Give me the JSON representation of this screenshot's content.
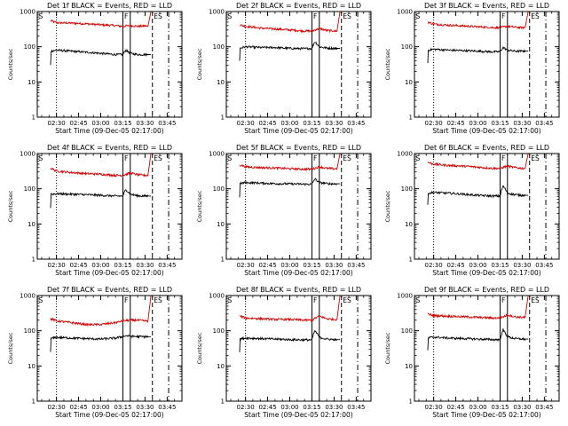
{
  "chart_data": {
    "type": "line",
    "grid": false,
    "legend": "none",
    "y_scale": "log",
    "ylim": [
      1,
      1000
    ],
    "y_ticks": [
      1,
      10,
      100,
      1000
    ],
    "y_tick_labels": [
      "1",
      "10",
      "100",
      "1000"
    ],
    "x_tick_labels": [
      "02:30",
      "02:45",
      "03:00",
      "03:15",
      "03:30",
      "03:45"
    ],
    "x_ticks_min": [
      0,
      15,
      30,
      45,
      60,
      75
    ],
    "x_start": "02:17:00",
    "xlim_min_from_0230": [
      -13,
      85
    ],
    "colors": {
      "events": "#000000",
      "lld": "#d40000"
    },
    "panels": [
      {
        "title": "Det 1f BLACK = Events, RED = LLD",
        "xlabel": "Start Time (09-Dec-05 02:17:00)",
        "ylabel": "Counts/sec",
        "lld_series": {
          "x": [
            -4,
            0,
            10,
            20,
            30,
            40,
            45,
            50,
            55,
            60,
            62,
            64
          ],
          "values": [
            550,
            480,
            470,
            450,
            420,
            400,
            380,
            400,
            380,
            390,
            380,
            1000
          ]
        },
        "events_series": {
          "x": [
            -4,
            -4,
            0,
            10,
            20,
            30,
            40,
            45,
            47,
            50,
            55,
            60,
            64
          ],
          "values": [
            30,
            75,
            80,
            75,
            70,
            65,
            60,
            60,
            80,
            65,
            60,
            60,
            60
          ]
        },
        "markers": [
          {
            "label": "S",
            "x": -13,
            "style": "solid"
          },
          {
            "label": "",
            "x": 0,
            "style": "dotted"
          },
          {
            "label": "F",
            "x": 45,
            "style": "solid"
          },
          {
            "label": "",
            "x": 50,
            "style": "solid"
          },
          {
            "label": "ES",
            "x": 65,
            "style": "dashed"
          },
          {
            "label": "",
            "x": 76,
            "style": "dashdot"
          }
        ]
      },
      {
        "title": "Det 2f BLACK = Events, RED = LLD",
        "xlabel": "Start Time (09-Dec-05 02:17:00)",
        "ylabel": "Counts/sec",
        "lld_series": {
          "x": [
            -4,
            0,
            10,
            20,
            30,
            40,
            45,
            50,
            55,
            60,
            62,
            64
          ],
          "values": [
            420,
            380,
            340,
            320,
            300,
            280,
            280,
            330,
            290,
            280,
            280,
            1000
          ]
        },
        "events_series": {
          "x": [
            -4,
            -4,
            0,
            10,
            20,
            30,
            40,
            45,
            47,
            50,
            55,
            60,
            64
          ],
          "values": [
            40,
            90,
            100,
            95,
            95,
            90,
            88,
            90,
            140,
            100,
            92,
            90,
            90
          ]
        },
        "markers": [
          {
            "label": "S",
            "x": -13,
            "style": "solid"
          },
          {
            "label": "",
            "x": 0,
            "style": "dotted"
          },
          {
            "label": "F",
            "x": 45,
            "style": "solid"
          },
          {
            "label": "",
            "x": 50,
            "style": "solid"
          },
          {
            "label": "ES",
            "x": 65,
            "style": "dashed"
          },
          {
            "label": "",
            "x": 76,
            "style": "dashdot"
          }
        ]
      },
      {
        "title": "Det 3f BLACK = Events, RED = LLD",
        "xlabel": "Start Time (09-Dec-05 02:17:00)",
        "ylabel": "Counts/sec",
        "lld_series": {
          "x": [
            -4,
            0,
            10,
            20,
            30,
            40,
            45,
            50,
            55,
            60,
            62,
            64
          ],
          "values": [
            500,
            440,
            410,
            390,
            370,
            350,
            350,
            380,
            360,
            350,
            350,
            1000
          ]
        },
        "events_series": {
          "x": [
            -4,
            -4,
            0,
            10,
            20,
            30,
            40,
            45,
            47,
            50,
            55,
            60,
            64
          ],
          "values": [
            35,
            80,
            85,
            80,
            78,
            75,
            72,
            72,
            95,
            80,
            75,
            75,
            75
          ]
        },
        "markers": [
          {
            "label": "S",
            "x": -13,
            "style": "solid"
          },
          {
            "label": "",
            "x": 0,
            "style": "dotted"
          },
          {
            "label": "F",
            "x": 45,
            "style": "solid"
          },
          {
            "label": "",
            "x": 50,
            "style": "solid"
          },
          {
            "label": "ES",
            "x": 65,
            "style": "dashed"
          },
          {
            "label": "",
            "x": 76,
            "style": "dashdot"
          }
        ]
      },
      {
        "title": "Det 4f BLACK = Events, RED = LLD",
        "xlabel": "Start Time (09-Dec-05 02:17:00)",
        "ylabel": "Counts/sec",
        "lld_series": {
          "x": [
            -4,
            0,
            10,
            20,
            30,
            40,
            45,
            50,
            55,
            60,
            62,
            64
          ],
          "values": [
            380,
            320,
            290,
            270,
            260,
            240,
            240,
            280,
            250,
            240,
            240,
            1000
          ]
        },
        "events_series": {
          "x": [
            -4,
            -4,
            0,
            10,
            20,
            30,
            40,
            45,
            47,
            50,
            55,
            60,
            64
          ],
          "values": [
            30,
            70,
            72,
            70,
            68,
            65,
            62,
            62,
            95,
            70,
            63,
            62,
            62
          ]
        },
        "markers": [
          {
            "label": "S",
            "x": -13,
            "style": "solid"
          },
          {
            "label": "",
            "x": 0,
            "style": "dotted"
          },
          {
            "label": "F",
            "x": 45,
            "style": "solid"
          },
          {
            "label": "",
            "x": 50,
            "style": "solid"
          },
          {
            "label": "ES",
            "x": 65,
            "style": "dashed"
          },
          {
            "label": "",
            "x": 76,
            "style": "dashdot"
          }
        ]
      },
      {
        "title": "Det 5f BLACK = Events, RED = LLD",
        "xlabel": "Start Time (09-Dec-05 02:17:00)",
        "ylabel": "Counts/sec",
        "lld_series": {
          "x": [
            -4,
            0,
            10,
            20,
            30,
            40,
            45,
            50,
            55,
            60,
            62,
            64
          ],
          "values": [
            480,
            420,
            400,
            390,
            370,
            360,
            360,
            420,
            380,
            370,
            370,
            1000
          ]
        },
        "events_series": {
          "x": [
            -4,
            -4,
            0,
            10,
            20,
            30,
            40,
            45,
            47,
            50,
            55,
            60,
            64
          ],
          "values": [
            60,
            140,
            150,
            145,
            140,
            138,
            135,
            135,
            190,
            150,
            140,
            138,
            138
          ]
        },
        "markers": [
          {
            "label": "S",
            "x": -13,
            "style": "solid"
          },
          {
            "label": "",
            "x": 0,
            "style": "dotted"
          },
          {
            "label": "F",
            "x": 45,
            "style": "solid"
          },
          {
            "label": "",
            "x": 50,
            "style": "solid"
          },
          {
            "label": "ES",
            "x": 65,
            "style": "dashed"
          },
          {
            "label": "",
            "x": 76,
            "style": "dashdot"
          }
        ]
      },
      {
        "title": "Det 6f BLACK = Events, RED = LLD",
        "xlabel": "Start Time (09-Dec-05 02:17:00)",
        "ylabel": "Counts/sec",
        "lld_series": {
          "x": [
            -4,
            0,
            10,
            20,
            30,
            40,
            45,
            50,
            55,
            60,
            62,
            64
          ],
          "values": [
            560,
            500,
            460,
            440,
            410,
            380,
            380,
            440,
            400,
            380,
            380,
            1000
          ]
        },
        "events_series": {
          "x": [
            -4,
            -4,
            0,
            10,
            20,
            30,
            40,
            45,
            47,
            50,
            55,
            60,
            64
          ],
          "values": [
            35,
            75,
            78,
            75,
            70,
            65,
            62,
            62,
            120,
            75,
            68,
            65,
            65
          ]
        },
        "markers": [
          {
            "label": "S",
            "x": -13,
            "style": "solid"
          },
          {
            "label": "",
            "x": 0,
            "style": "dotted"
          },
          {
            "label": "F",
            "x": 45,
            "style": "solid"
          },
          {
            "label": "",
            "x": 50,
            "style": "solid"
          },
          {
            "label": "ES",
            "x": 65,
            "style": "dashed"
          },
          {
            "label": "",
            "x": 76,
            "style": "dashdot"
          }
        ]
      },
      {
        "title": "Det 7f BLACK = Events, RED = LLD",
        "xlabel": "Start Time (09-Dec-05 02:17:00)",
        "ylabel": "Counts/sec",
        "lld_series": {
          "x": [
            -4,
            0,
            10,
            20,
            30,
            40,
            45,
            50,
            55,
            60,
            62,
            64
          ],
          "values": [
            220,
            190,
            170,
            150,
            150,
            170,
            190,
            200,
            200,
            190,
            190,
            1000
          ]
        },
        "events_series": {
          "x": [
            -4,
            -4,
            0,
            10,
            20,
            30,
            40,
            45,
            47,
            50,
            55,
            60,
            64
          ],
          "values": [
            25,
            60,
            65,
            62,
            60,
            58,
            62,
            68,
            72,
            70,
            68,
            68,
            68
          ]
        },
        "markers": [
          {
            "label": "S",
            "x": -13,
            "style": "solid"
          },
          {
            "label": "",
            "x": 0,
            "style": "dotted"
          },
          {
            "label": "F",
            "x": 45,
            "style": "solid"
          },
          {
            "label": "",
            "x": 50,
            "style": "solid"
          },
          {
            "label": "ES",
            "x": 65,
            "style": "dashed"
          },
          {
            "label": "",
            "x": 76,
            "style": "dashdot"
          }
        ]
      },
      {
        "title": "Det 8f BLACK = Events, RED = LLD",
        "xlabel": "Start Time (09-Dec-05 02:17:00)",
        "ylabel": "Counts/sec",
        "lld_series": {
          "x": [
            -4,
            0,
            10,
            20,
            30,
            40,
            45,
            50,
            55,
            60,
            62,
            64
          ],
          "values": [
            260,
            230,
            220,
            210,
            210,
            200,
            200,
            260,
            220,
            210,
            210,
            1000
          ]
        },
        "events_series": {
          "x": [
            -4,
            -4,
            0,
            10,
            20,
            30,
            40,
            45,
            47,
            50,
            55,
            60,
            64
          ],
          "values": [
            25,
            58,
            62,
            60,
            58,
            56,
            55,
            55,
            100,
            65,
            58,
            56,
            56
          ]
        },
        "markers": [
          {
            "label": "S",
            "x": -13,
            "style": "solid"
          },
          {
            "label": "",
            "x": 0,
            "style": "dotted"
          },
          {
            "label": "F",
            "x": 45,
            "style": "solid"
          },
          {
            "label": "",
            "x": 50,
            "style": "solid"
          },
          {
            "label": "ES",
            "x": 65,
            "style": "dashed"
          },
          {
            "label": "",
            "x": 76,
            "style": "dashdot"
          }
        ]
      },
      {
        "title": "Det 9f BLACK = Events, RED = LLD",
        "xlabel": "Start Time (09-Dec-05 02:17:00)",
        "ylabel": "Counts/sec",
        "lld_series": {
          "x": [
            -4,
            0,
            10,
            20,
            30,
            40,
            45,
            50,
            55,
            60,
            62,
            64
          ],
          "values": [
            300,
            270,
            260,
            250,
            240,
            230,
            230,
            280,
            250,
            240,
            240,
            1000
          ]
        },
        "events_series": {
          "x": [
            -4,
            -4,
            0,
            10,
            20,
            30,
            40,
            45,
            47,
            50,
            55,
            60,
            64
          ],
          "values": [
            28,
            62,
            66,
            62,
            60,
            58,
            56,
            56,
            105,
            68,
            60,
            58,
            58
          ]
        },
        "markers": [
          {
            "label": "S",
            "x": -13,
            "style": "solid"
          },
          {
            "label": "",
            "x": 0,
            "style": "dotted"
          },
          {
            "label": "F",
            "x": 45,
            "style": "solid"
          },
          {
            "label": "",
            "x": 50,
            "style": "solid"
          },
          {
            "label": "ES",
            "x": 65,
            "style": "dashed"
          },
          {
            "label": "",
            "x": 76,
            "style": "dashdot"
          }
        ]
      }
    ]
  }
}
